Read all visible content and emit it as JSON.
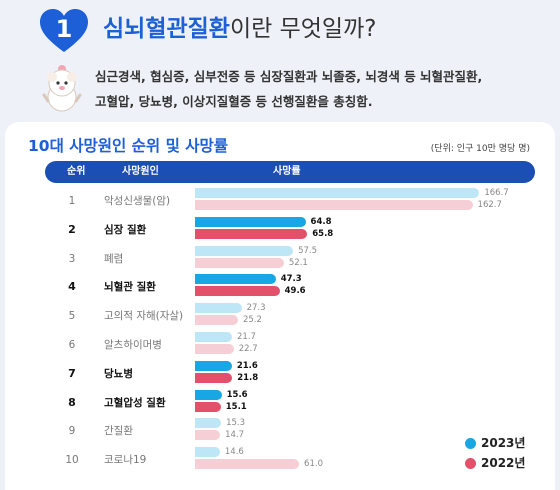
{
  "header": {
    "number": "1",
    "title_highlight": "심뇌혈관질환",
    "title_rest": "이란 무엇일까?",
    "description_line1": "심근경색, 협심증, 심부전증 등 심장질환과 뇌졸중, 뇌경색 등 뇌혈관질환,",
    "description_line2": "고혈압, 당뇨병, 이상지질혈증 등 선행질환을 총칭함."
  },
  "colors": {
    "primary_blue": "#1c5fd6",
    "header_bar": "#1c4fb4",
    "series_2023": "#19a6e4",
    "series_2022": "#e3506a",
    "series_2023_muted": "#bde6f6",
    "series_2022_muted": "#f6cfd6"
  },
  "chart_data": {
    "type": "bar",
    "title": "10대 사망원인 순위 및 사망률",
    "unit_note": "(단위: 인구 10만 명당 명)",
    "columns": [
      "순위",
      "사망원인",
      "사망률"
    ],
    "ranks": [
      "1",
      "2",
      "3",
      "4",
      "5",
      "6",
      "7",
      "8",
      "9",
      "10"
    ],
    "categories": [
      "악성신생물(암)",
      "심장 질환",
      "폐렴",
      "뇌혈관 질환",
      "고의적 자해(자살)",
      "알츠하이머병",
      "당뇨병",
      "고혈압성 질환",
      "간질환",
      "코로나19"
    ],
    "highlighted": [
      false,
      true,
      false,
      true,
      false,
      false,
      true,
      true,
      false,
      false
    ],
    "series": [
      {
        "name": "2023년",
        "values": [
          166.7,
          64.8,
          57.5,
          47.3,
          27.3,
          21.7,
          21.6,
          15.6,
          15.3,
          14.6
        ],
        "labels": [
          "166.7",
          "64.8",
          "57.5",
          "47.3",
          "27.3",
          "21.7",
          "21.6",
          "15.6",
          "15.3",
          "14.6"
        ]
      },
      {
        "name": "2022년",
        "values": [
          162.7,
          65.8,
          52.1,
          49.6,
          25.2,
          22.7,
          21.8,
          15.1,
          14.7,
          61.0
        ],
        "labels": [
          "162.7",
          "65.8",
          "52.1",
          "49.6",
          "25.2",
          "22.7",
          "21.8",
          "15.1",
          "14.7",
          "61.0"
        ]
      }
    ],
    "xlim": [
      0,
      170
    ],
    "orientation": "horizontal",
    "legend_position": "bottom-right",
    "grid": false
  }
}
